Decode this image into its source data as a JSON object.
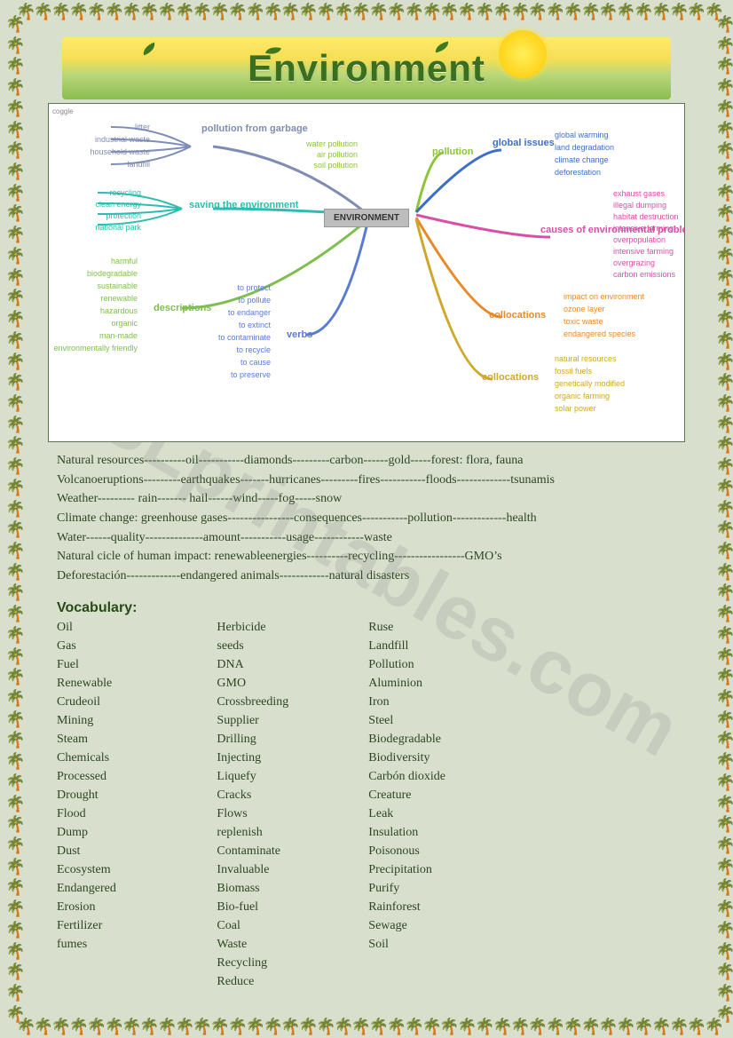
{
  "banner": {
    "title": "Environment"
  },
  "watermark": "ESLprintables.com",
  "mindmap": {
    "center": "ENVIRONMENT",
    "colors": {
      "garbage": "#7f8db5",
      "saving": "#2dbdb0",
      "descriptions": "#7fbf4f",
      "verbs": "#5a7bd4",
      "pollution": "#8cc43a",
      "global": "#3d6fc6",
      "causes": "#d94fa8",
      "colloc1": "#e88a2a",
      "colloc2": "#cfa72a"
    },
    "branches": {
      "pollution_from_garbage": {
        "label": "pollution\nfrom\ngarbage",
        "items": [
          "litter",
          "industrial waste",
          "household waste",
          "landfill"
        ]
      },
      "saving_environment": {
        "label": "saving the\nenvironment",
        "items": [
          "recycling",
          "clean energy",
          "protection",
          "national park"
        ]
      },
      "descriptions": {
        "label": "descriptions",
        "items": [
          "harmful",
          "biodegradable",
          "sustainable",
          "renewable",
          "hazardous",
          "organic",
          "man-made",
          "environmentally friendly"
        ]
      },
      "verbs": {
        "label": "verbs",
        "items": [
          "to protect",
          "to pollute",
          "to endanger",
          "to extinct",
          "to contaminate",
          "to recycle",
          "to cause",
          "to preserve"
        ]
      },
      "pollution": {
        "label": "pollution",
        "items": [
          "water pollution",
          "air pollution",
          "soil pollution"
        ]
      },
      "global_issues": {
        "label": "global\nissues",
        "items": [
          "global warming",
          "land degradation",
          "climate change",
          "deforestation"
        ]
      },
      "causes": {
        "label": "causes of\nenvironmental\nproblems",
        "items": [
          "exhaust gases",
          "illegal dumping",
          "habitat destruction",
          "intensive farming",
          "overpopulation",
          "intensive farming",
          "overgrazing",
          "carbon emissions"
        ]
      },
      "collocations1": {
        "label": "collocations",
        "items": [
          "impact on environment",
          "ozone layer",
          "toxic waste",
          "endangered species"
        ]
      },
      "collocations2": {
        "label": "collocations",
        "items": [
          "natural resources",
          "fossil fuels",
          "genetically modified",
          "organic farming",
          "solar power"
        ]
      }
    }
  },
  "wordlines": [
    "Natural resources----------oil-----------diamonds---------carbon------gold-----forest: flora, fauna",
    "Volcanoeruptions---------earthquakes-------hurricanes---------fires-----------floods-------------tsunamis",
    "Weather--------- rain------- hail------wind-----fog-----snow",
    "Climate change: greenhouse gases----------------consequences-----------pollution-------------health",
    "Water------quality--------------amount-----------usage------------waste",
    "Natural cicle of human impact: renewableenergies----------recycling-----------------GMO’s",
    "Deforestación-------------endangered animals------------natural disasters"
  ],
  "vocab": {
    "heading": "Vocabulary:",
    "col1": [
      "Oil",
      "Gas",
      "Fuel",
      "Renewable",
      "Crudeoil",
      "Mining",
      "Steam",
      "Chemicals",
      "Processed",
      "Drought",
      "Flood",
      "Dump",
      "Dust",
      "Ecosystem",
      "Endangered",
      "Erosion",
      "Fertilizer",
      "fumes"
    ],
    "col2": [
      "Herbicide",
      "seeds",
      "DNA",
      "GMO",
      "Crossbreeding",
      "Supplier",
      "Drilling",
      "Injecting",
      "Liquefy",
      "Cracks",
      "Flows",
      "replenish",
      "Contaminate",
      "Invaluable",
      "Biomass",
      "Bio-fuel",
      "Coal",
      "Waste",
      "Recycling",
      "Reduce"
    ],
    "col3": [
      "Ruse",
      "Landfill",
      "Pollution",
      "Aluminion",
      "Iron",
      "Steel",
      "Biodegradable",
      "Biodiversity",
      "Carbón dioxide",
      "Creature",
      "Leak",
      "Insulation",
      "Poisonous",
      "Precipitation",
      "Purify",
      "Rainforest",
      "Sewage",
      "Soil"
    ]
  }
}
